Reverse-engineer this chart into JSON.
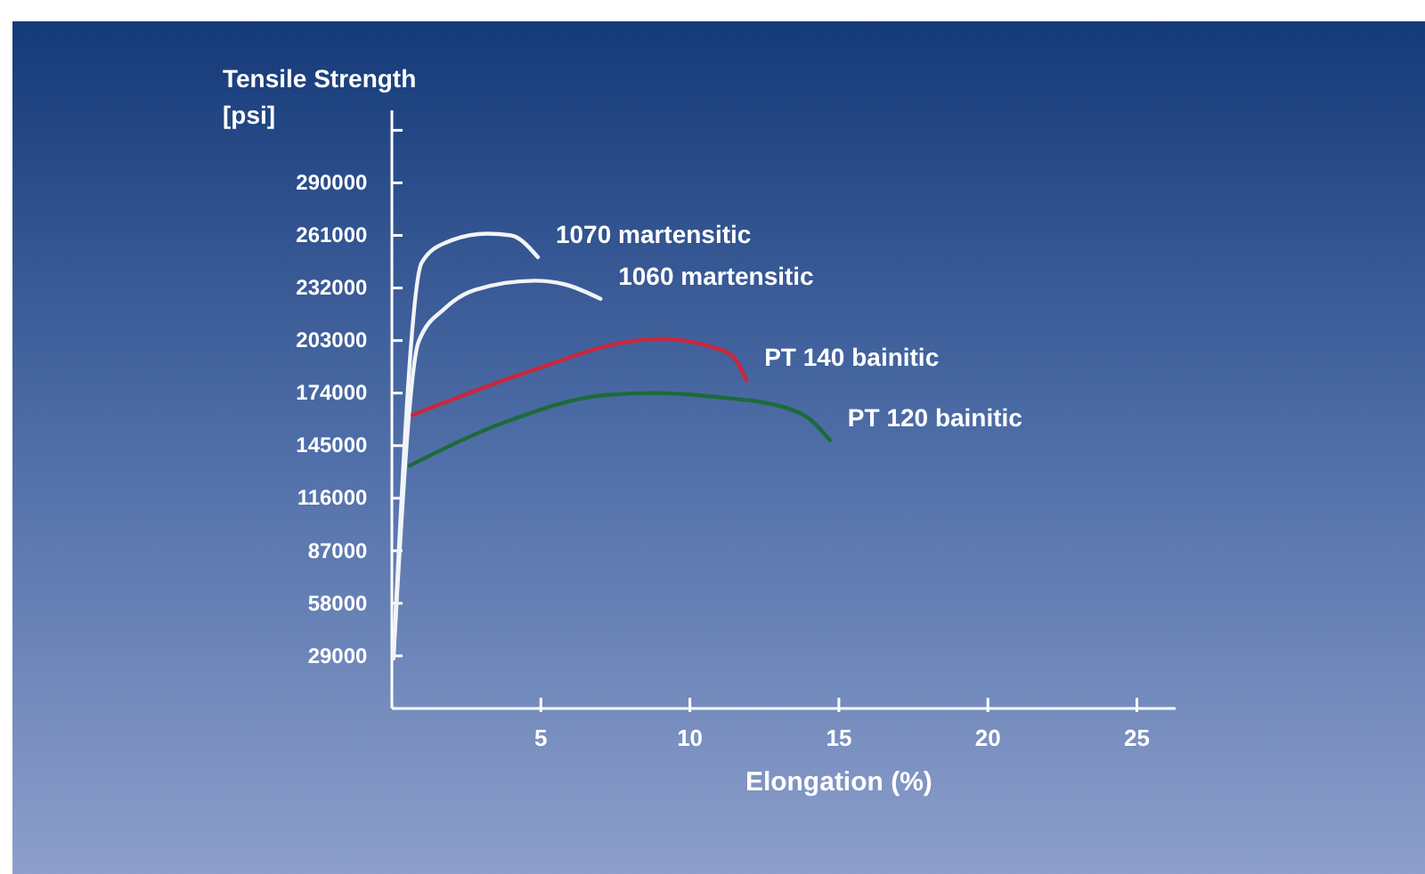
{
  "chart_data": {
    "type": "line",
    "xlabel": "Elongation (%)",
    "ylabel": "Tensile Strength\n[psi]",
    "xlim": [
      0,
      26.3
    ],
    "xticks": [
      5,
      10,
      15,
      20,
      25
    ],
    "ylim": [
      0,
      330000
    ],
    "yticks": [
      29000,
      58000,
      87000,
      116000,
      145000,
      174000,
      203000,
      232000,
      261000,
      290000,
      {
        "value": 319000,
        "label": null
      }
    ],
    "grid": false,
    "legend": false,
    "marker": "none",
    "line_style": "solid",
    "series": [
      {
        "name": "1070 martensitic",
        "color": "#f2f4f8",
        "x": [
          0.05,
          1.0,
          1.8,
          3.2,
          4.0,
          4.9
        ],
        "values": [
          27500,
          246000,
          257000,
          262000,
          261000,
          249000
        ]
      },
      {
        "name": "1060 martensitic",
        "color": "#f2f4f8",
        "x": [
          0.05,
          0.9,
          1.8,
          2.8,
          4.8,
          5.8,
          7.0
        ],
        "values": [
          27500,
          202500,
          221000,
          231000,
          236000,
          234000,
          226000
        ]
      },
      {
        "name": "PT 140 bainitic",
        "color": "#c8283c",
        "x": [
          0.7,
          4.8,
          7.8,
          9.0,
          10.6,
          11.4,
          11.9
        ],
        "values": [
          162000,
          187000,
          202000,
          204000,
          200000,
          195000,
          181000
        ]
      },
      {
        "name": "PT 120 bainitic",
        "color": "#1e6a3a",
        "x": [
          0.6,
          3.8,
          7.2,
          8.8,
          10.8,
          13.2,
          14.0,
          14.7
        ],
        "values": [
          134000,
          158000,
          173000,
          174000,
          172000,
          166000,
          160000,
          148000
        ]
      }
    ]
  }
}
